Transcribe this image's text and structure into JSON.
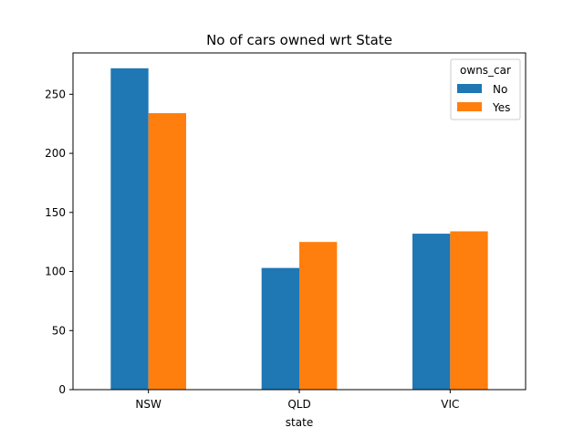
{
  "chart_data": {
    "type": "bar",
    "title": "No of cars owned wrt State",
    "xlabel": "state",
    "ylabel": "",
    "categories": [
      "NSW",
      "QLD",
      "VIC"
    ],
    "series": [
      {
        "name": "No",
        "values": [
          272,
          103,
          132
        ],
        "color": "#1f77b4"
      },
      {
        "name": "Yes",
        "values": [
          234,
          125,
          134
        ],
        "color": "#ff7f0e"
      }
    ],
    "ylim": [
      0,
      285
    ],
    "yticks": [
      0,
      50,
      100,
      150,
      200,
      250
    ],
    "legend": {
      "title": "owns_car",
      "placement": "top-right"
    },
    "grid": false
  }
}
